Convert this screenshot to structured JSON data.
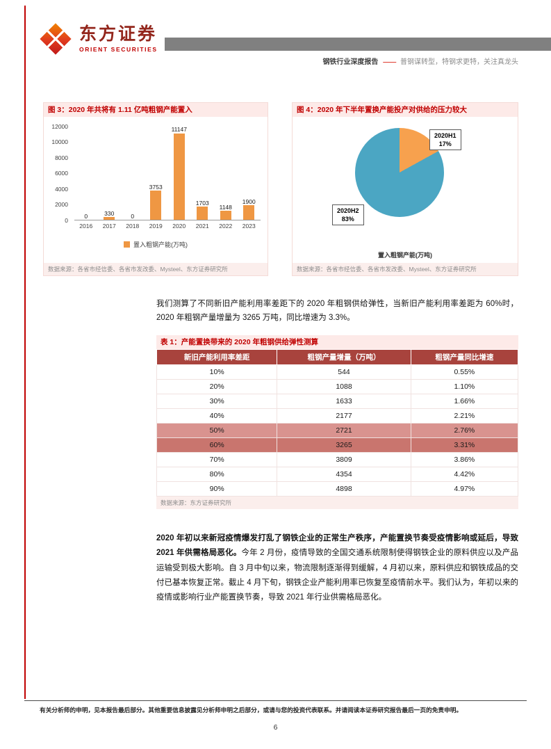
{
  "header": {
    "brand_cn": "东方证券",
    "brand_en": "ORIENT SECURITIES",
    "report_type": "钢铁行业深度报告",
    "dash": "——",
    "report_subtitle": "普钢谋转型，特钢求更特，关注真龙头"
  },
  "figure3": {
    "title": "图 3：2020 年共将有 1.11 亿吨粗钢产能置入",
    "legend": "置入粗钢产能(万吨)",
    "source": "数据来源：各省市经信委、各省市发改委、Mysteel、东方证券研究所"
  },
  "figure4": {
    "title": "图 4：2020 年下半年置换产能投产对供给的压力较大",
    "series_label": "置入粗钢产能(万吨)",
    "source": "数据来源：各省市经信委、各省市发改委、Mysteel、东方证券研究所",
    "labels": {
      "h1": "2020H1",
      "h1_pct": "17%",
      "h2": "2020H2",
      "h2_pct": "83%"
    }
  },
  "paragraph1": "我们测算了不同新旧产能利用率差距下的 2020 年粗钢供给弹性，当新旧产能利用率差距为 60%时，2020 年粗钢产量增量为 3265 万吨，同比增速为 3.3%。",
  "table1": {
    "title": "表 1：产能置换带来的 2020 年粗钢供给弹性测算",
    "headers": [
      "新旧产能利用率差距",
      "粗钢产量增量（万吨）",
      "粗钢产量同比增速"
    ],
    "rows": [
      [
        "10%",
        "544",
        "0.55%"
      ],
      [
        "20%",
        "1088",
        "1.10%"
      ],
      [
        "30%",
        "1633",
        "1.66%"
      ],
      [
        "40%",
        "2177",
        "2.21%"
      ],
      [
        "50%",
        "2721",
        "2.76%"
      ],
      [
        "60%",
        "3265",
        "3.31%"
      ],
      [
        "70%",
        "3809",
        "3.86%"
      ],
      [
        "80%",
        "4354",
        "4.42%"
      ],
      [
        "90%",
        "4898",
        "4.97%"
      ]
    ],
    "highlight_rows": {
      "4": "light",
      "5": "dark"
    },
    "source": "数据来源：东方证券研究所"
  },
  "paragraph2": {
    "bold": "2020 年初以来新冠疫情爆发打乱了钢铁企业的正常生产秩序，产能置换节奏受疫情影响或延后，导致 2021 年供需格局恶化。",
    "regular": "今年 2 月份，疫情导致的全国交通系统限制使得钢铁企业的原料供应以及产品运输受到极大影响。自 3 月中旬以来，物流限制逐渐得到缓解，4 月初以来，原料供应和钢铁成品的交付已基本恢复正常。截止 4 月下旬，钢铁企业产能利用率已恢复至疫情前水平。我们认为，年初以来的疫情或影响行业产能置换节奏，导致 2021 年行业供需格局恶化。"
  },
  "footer": {
    "disclaimer": "有关分析师的申明，见本报告最后部分。其他重要信息披露见分析师申明之后部分，或请与您的投资代表联系。并请阅读本证券研究报告最后一页的免责申明。",
    "page_number": "6"
  },
  "colors": {
    "accent_red": "#C00000",
    "title_bar_bg": "#FDEAE8",
    "source_bar_bg": "#FBEEEC",
    "table_header_bg": "#A8433D",
    "row_highlight_light": "#D9938F",
    "row_highlight_dark": "#C9756E",
    "bar_color": "#EF9743",
    "gray_bar": "#808080"
  },
  "chart_data": [
    {
      "type": "bar",
      "title": "2020 年共将有 1.11 亿吨粗钢产能置入",
      "categories": [
        "2016",
        "2017",
        "2018",
        "2019",
        "2020",
        "2021",
        "2022",
        "2023"
      ],
      "values": [
        0,
        330,
        0,
        3753,
        11147,
        1703,
        1148,
        1900
      ],
      "xlabel": "",
      "ylabel": "",
      "ylim": [
        0,
        12000
      ],
      "yticks": [
        0,
        2000,
        4000,
        6000,
        8000,
        10000,
        12000
      ],
      "legend": "置入粗钢产能(万吨)",
      "legend_position": "bottom",
      "grid": false,
      "bar_color": "#EF9743"
    },
    {
      "type": "pie",
      "title": "2020 年下半年置换产能投产对供给的压力较大",
      "labels": [
        "2020H1",
        "2020H2"
      ],
      "values": [
        17,
        83
      ],
      "colors": [
        "#F7A14E",
        "#4BA6C3"
      ],
      "legend": "置入粗钢产能(万吨)",
      "legend_position": "bottom"
    }
  ]
}
